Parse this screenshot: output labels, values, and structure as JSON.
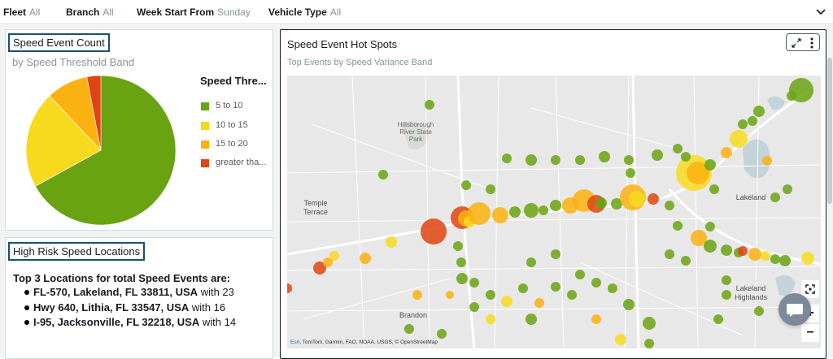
{
  "filters": [
    {
      "label": "Fleet",
      "value": "All"
    },
    {
      "label": "Branch",
      "value": "All"
    },
    {
      "label": "Week Start From",
      "value": "Sunday"
    },
    {
      "label": "Vehicle Type",
      "value": "All"
    }
  ],
  "speed_event_count": {
    "title": "Speed Event Count",
    "subtitle": "by Speed Threshold Band",
    "legend_title": "Speed Thre...",
    "legend": [
      {
        "label": "5 to 10",
        "color": "#6aa312"
      },
      {
        "label": "10 to 15",
        "color": "#f7da1e"
      },
      {
        "label": "15 to 20",
        "color": "#fbb10f"
      },
      {
        "label": "greater tha...",
        "color": "#e04410"
      }
    ],
    "chart_data": {
      "type": "pie",
      "categories": [
        "5 to 10",
        "10 to 15",
        "15 to 20",
        "greater tha..."
      ],
      "values": [
        67,
        21,
        9,
        3
      ],
      "colors": [
        "#6aa312",
        "#f7da1e",
        "#fbb10f",
        "#e04410"
      ],
      "legend_placement": "right"
    }
  },
  "high_risk": {
    "title": "High Risk Speed Locations",
    "heading": "Top 3 Locations for total Speed Events are:",
    "items": [
      {
        "location": "FL-570, Lakeland, FL 33811, USA",
        "suffix": "with 23"
      },
      {
        "location": "Hwy 640, Lithia, FL 33547, USA",
        "suffix": "with 16"
      },
      {
        "location": "I-95, Jacksonville, FL 32218, USA",
        "suffix": "with 14"
      }
    ]
  },
  "hot_spots": {
    "title": "Speed Event Hot Spots",
    "subtitle": "Top Events by Speed Variance Band",
    "map_labels": {
      "park": "Hillsborough River State Park",
      "park_l1": "Hillsborough",
      "park_l2": "River State",
      "park_l3": "Park",
      "temple_l1": "Temple",
      "temple_l2": "Terrace",
      "lakeland": "Lakeland",
      "highlands_l1": "Lakeland",
      "highlands_l2": "Highlands",
      "brandon": "Brandon"
    },
    "attribution_esri": "Esri",
    "attribution_rest": ", TomTom, Garmin, FAO, NOAA, USGS, © OpenStreetMap",
    "zoom_in": "+",
    "zoom_out": "−"
  }
}
